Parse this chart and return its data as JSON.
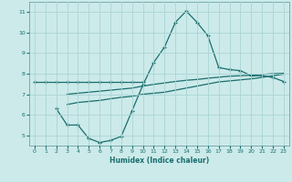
{
  "xlabel": "Humidex (Indice chaleur)",
  "bg_color": "#cceaea",
  "grid_color": "#aad4d4",
  "line_color": "#1a6e6e",
  "xlim": [
    -0.5,
    23.5
  ],
  "ylim": [
    4.5,
    11.5
  ],
  "xticks": [
    0,
    1,
    2,
    3,
    4,
    5,
    6,
    7,
    8,
    9,
    10,
    11,
    12,
    13,
    14,
    15,
    16,
    17,
    18,
    19,
    20,
    21,
    22,
    23
  ],
  "yticks": [
    5,
    6,
    7,
    8,
    9,
    10,
    11
  ],
  "line1_x": [
    0,
    1,
    2,
    3,
    4,
    5,
    6,
    7,
    8,
    9,
    10
  ],
  "line1_y": [
    7.6,
    7.6,
    7.6,
    7.6,
    7.6,
    7.6,
    7.6,
    7.6,
    7.6,
    7.6,
    7.6
  ],
  "line2_x": [
    2,
    3,
    4,
    5,
    6,
    7,
    8,
    9,
    10,
    11,
    12,
    13,
    14,
    15,
    16,
    17,
    18,
    19,
    20,
    21,
    22,
    23
  ],
  "line2_y": [
    6.3,
    5.5,
    5.5,
    4.85,
    4.65,
    4.75,
    4.95,
    6.2,
    7.45,
    8.55,
    9.3,
    10.5,
    11.05,
    10.5,
    9.85,
    8.3,
    8.2,
    8.15,
    7.9,
    7.9,
    7.82,
    7.62
  ],
  "line3_x": [
    3,
    4,
    5,
    6,
    7,
    8,
    9,
    10,
    11,
    12,
    13,
    14,
    15,
    16,
    17,
    18,
    19,
    20,
    21,
    22,
    23
  ],
  "line3_y": [
    6.5,
    6.6,
    6.65,
    6.7,
    6.78,
    6.85,
    6.9,
    7.0,
    7.05,
    7.1,
    7.2,
    7.3,
    7.4,
    7.5,
    7.6,
    7.65,
    7.7,
    7.75,
    7.82,
    7.9,
    7.98
  ],
  "line4_x": [
    3,
    4,
    5,
    6,
    7,
    8,
    9,
    10,
    11,
    12,
    13,
    14,
    15,
    16,
    17,
    18,
    19,
    20,
    21,
    22,
    23
  ],
  "line4_y": [
    7.0,
    7.05,
    7.1,
    7.15,
    7.2,
    7.25,
    7.3,
    7.4,
    7.48,
    7.55,
    7.62,
    7.68,
    7.72,
    7.78,
    7.83,
    7.88,
    7.9,
    7.93,
    7.96,
    8.0,
    8.02
  ]
}
